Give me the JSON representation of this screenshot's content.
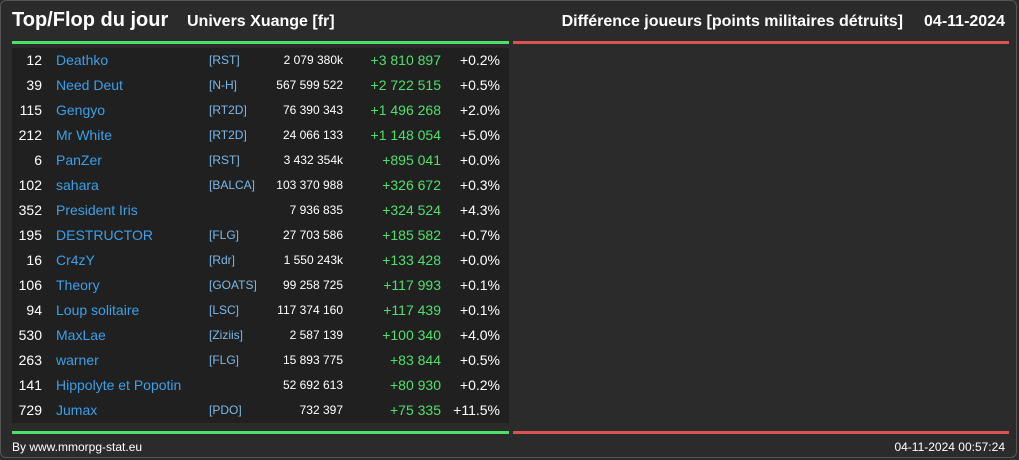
{
  "header": {
    "title": "Top/Flop du jour",
    "server": "Univers Xuange [fr]",
    "metric": "Différence joueurs [points militaires détruits]",
    "date": "04-11-2024"
  },
  "colors": {
    "top_bar": "#4ee06a",
    "flop_bar": "#d9534f",
    "name": "#3aa0e8",
    "gain": "#4ee06a"
  },
  "rows": [
    {
      "rank": "12",
      "name": "Deathko",
      "alliance": "[RST]",
      "points": "2 079 380k",
      "diff": "+3 810 897",
      "pct": "+0.2%"
    },
    {
      "rank": "39",
      "name": "Need Deut",
      "alliance": "[N-H]",
      "points": "567 599 522",
      "diff": "+2 722 515",
      "pct": "+0.5%"
    },
    {
      "rank": "115",
      "name": "Gengyo",
      "alliance": "[RT2D]",
      "points": "76 390 343",
      "diff": "+1 496 268",
      "pct": "+2.0%"
    },
    {
      "rank": "212",
      "name": "Mr White",
      "alliance": "[RT2D]",
      "points": "24 066 133",
      "diff": "+1 148 054",
      "pct": "+5.0%"
    },
    {
      "rank": "6",
      "name": "PanZer",
      "alliance": "[RST]",
      "points": "3 432 354k",
      "diff": "+895 041",
      "pct": "+0.0%"
    },
    {
      "rank": "102",
      "name": "sahara",
      "alliance": "[BALCA]",
      "points": "103 370 988",
      "diff": "+326 672",
      "pct": "+0.3%"
    },
    {
      "rank": "352",
      "name": "President Iris",
      "alliance": "",
      "points": "7 936 835",
      "diff": "+324 524",
      "pct": "+4.3%"
    },
    {
      "rank": "195",
      "name": "DESTRUCTOR",
      "alliance": "[FLG]",
      "points": "27 703 586",
      "diff": "+185 582",
      "pct": "+0.7%"
    },
    {
      "rank": "16",
      "name": "Cr4zY",
      "alliance": "[Rdr]",
      "points": "1 550 243k",
      "diff": "+133 428",
      "pct": "+0.0%"
    },
    {
      "rank": "106",
      "name": "Theory",
      "alliance": "[GOATS]",
      "points": "99 258 725",
      "diff": "+117 993",
      "pct": "+0.1%"
    },
    {
      "rank": "94",
      "name": "Loup solitaire",
      "alliance": "[LSC]",
      "points": "117 374 160",
      "diff": "+117 439",
      "pct": "+0.1%"
    },
    {
      "rank": "530",
      "name": "MaxLae",
      "alliance": "[Ziziis]",
      "points": "2 587 139",
      "diff": "+100 340",
      "pct": "+4.0%"
    },
    {
      "rank": "263",
      "name": "warner",
      "alliance": "[FLG]",
      "points": "15 893 775",
      "diff": "+83 844",
      "pct": "+0.5%"
    },
    {
      "rank": "141",
      "name": "Hippolyte et Popotin",
      "alliance": "",
      "points": "52 692 613",
      "diff": "+80 930",
      "pct": "+0.2%"
    },
    {
      "rank": "729",
      "name": "Jumax",
      "alliance": "[PDO]",
      "points": "732 397",
      "diff": "+75 335",
      "pct": "+11.5%"
    }
  ],
  "footer": {
    "credit": "By www.mmorpg-stat.eu",
    "timestamp": "04-11-2024 00:57:24"
  }
}
